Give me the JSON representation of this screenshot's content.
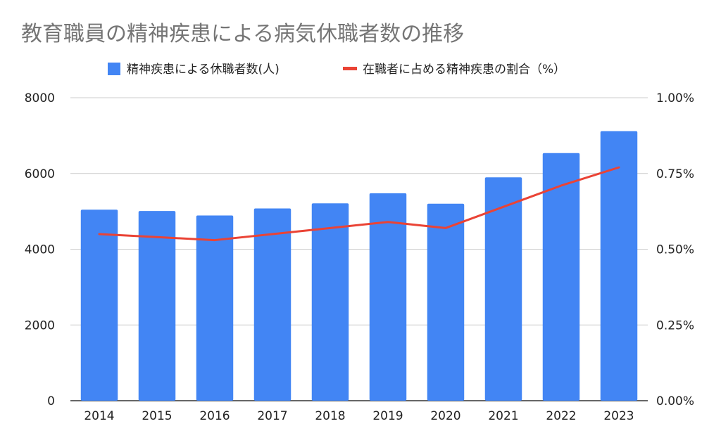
{
  "chart_data": {
    "type": "bar",
    "title": "教育職員の精神疾患による病気休職者数の推移",
    "categories": [
      "2014",
      "2015",
      "2016",
      "2017",
      "2018",
      "2019",
      "2020",
      "2021",
      "2022",
      "2023"
    ],
    "series": [
      {
        "name": "精神疾患による休職者数(人)",
        "type": "bar",
        "axis": "left",
        "color": "#4285f4",
        "values": [
          5045,
          5009,
          4891,
          5077,
          5212,
          5478,
          5203,
          5897,
          6539,
          7119
        ]
      },
      {
        "name": "在職者に占める精神疾患の割合（%）",
        "type": "line",
        "axis": "right",
        "color": "#ea4335",
        "values": [
          0.55,
          0.54,
          0.53,
          0.55,
          0.57,
          0.59,
          0.57,
          0.64,
          0.71,
          0.77
        ]
      }
    ],
    "y_left": {
      "min": 0,
      "max": 8000,
      "ticks": [
        "0",
        "2000",
        "4000",
        "6000",
        "8000"
      ]
    },
    "y_right": {
      "min": 0,
      "max": 1.0,
      "ticks": [
        "0.00%",
        "0.25%",
        "0.50%",
        "0.75%",
        "1.00%"
      ]
    },
    "grid": true,
    "legend": "top"
  }
}
